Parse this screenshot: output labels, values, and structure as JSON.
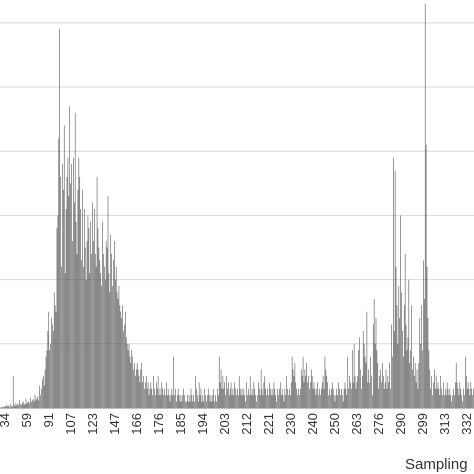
{
  "chart_data": {
    "type": "bar",
    "title": "",
    "xlabel": "Sampling",
    "ylabel": "",
    "x_ticks": [
      "34",
      "59",
      "91",
      "107",
      "123",
      "147",
      "166",
      "176",
      "185",
      "194",
      "203",
      "212",
      "221",
      "230",
      "240",
      "250",
      "263",
      "276",
      "290",
      "299",
      "313",
      "332"
    ],
    "ylim": [
      0,
      6.2
    ],
    "grid": true,
    "bar_color": "#555555",
    "gridline_color": "#d9d9d9",
    "samples": [
      0.01,
      0.01,
      0.02,
      0.01,
      0.02,
      0.03,
      0.02,
      0.05,
      0.03,
      0.04,
      0.02,
      0.06,
      0.03,
      0.02,
      0.5,
      0.05,
      0.03,
      0.08,
      0.04,
      0.06,
      0.05,
      0.12,
      0.06,
      0.05,
      0.08,
      0.1,
      0.05,
      0.06,
      0.14,
      0.07,
      0.09,
      0.1,
      0.08,
      0.16,
      0.1,
      0.12,
      0.14,
      0.1,
      0.2,
      0.12,
      0.15,
      0.18,
      0.12,
      0.35,
      0.2,
      0.3,
      0.45,
      0.5,
      0.35,
      0.6,
      0.8,
      0.9,
      1.2,
      1.5,
      0.9,
      1.0,
      1.4,
      1.3,
      1.2,
      1.8,
      1.6,
      1.5,
      2.8,
      3.0,
      4.2,
      5.9,
      3.6,
      2.2,
      3.8,
      3.4,
      4.4,
      2.1,
      3.1,
      3.6,
      3.9,
      3.3,
      4.7,
      3.5,
      3.8,
      2.6,
      3.9,
      3.2,
      4.6,
      2.9,
      2.4,
      3.4,
      3.9,
      3.6,
      3.1,
      2.3,
      3.4,
      2.2,
      3.1,
      2.5,
      2.0,
      2.6,
      3.0,
      2.8,
      2.1,
      2.9,
      2.4,
      3.2,
      2.6,
      3.1,
      2.4,
      2.2,
      3.6,
      2.8,
      2.5,
      2.3,
      2.1,
      1.9,
      2.9,
      2.4,
      2.2,
      2.0,
      2.6,
      2.5,
      3.3,
      2.1,
      1.8,
      2.7,
      2.4,
      1.9,
      2.3,
      2.6,
      2.0,
      2.2,
      1.8,
      1.7,
      1.9,
      1.6,
      1.5,
      1.4,
      1.6,
      1.2,
      1.3,
      1.5,
      1.1,
      1.0,
      0.9,
      1.0,
      0.8,
      0.7,
      0.9,
      0.8,
      0.6,
      0.7,
      0.5,
      0.6,
      0.7,
      0.6,
      0.5,
      0.4,
      0.6,
      0.7,
      0.4,
      0.5,
      0.3,
      0.4,
      0.5,
      0.3,
      0.4,
      0.2,
      0.3,
      0.4,
      0.3,
      0.2,
      0.5,
      0.3,
      0.2,
      0.4,
      0.3,
      0.5,
      0.2,
      0.3,
      0.2,
      0.4,
      0.3,
      0.2,
      0.3,
      0.2,
      0.4,
      0.2,
      0.3,
      0.2,
      0.1,
      0.2,
      0.3,
      0.2,
      0.8,
      0.2,
      0.3,
      0.1,
      0.2,
      0.3,
      0.2,
      0.1,
      0.2,
      0.1,
      0.2,
      0.3,
      0.2,
      0.1,
      0.1,
      0.2,
      0.1,
      0.2,
      0.1,
      0.3,
      0.2,
      0.1,
      0.2,
      0.1,
      0.5,
      0.3,
      0.2,
      0.1,
      0.4,
      0.2,
      0.3,
      0.1,
      0.2,
      0.1,
      0.3,
      0.2,
      0.1,
      0.2,
      0.3,
      0.2,
      0.1,
      0.2,
      0.1,
      0.2,
      0.3,
      0.1,
      0.2,
      0.1,
      0.3,
      0.2,
      0.8,
      0.4,
      0.6,
      0.3,
      0.5,
      0.3,
      0.4,
      0.2,
      0.5,
      0.3,
      0.4,
      0.2,
      0.3,
      0.4,
      0.2,
      0.3,
      0.2,
      0.4,
      0.3,
      0.2,
      0.3,
      0.2,
      0.5,
      0.3,
      0.2,
      0.3,
      0.2,
      0.3,
      0.2,
      0.1,
      0.4,
      0.2,
      0.3,
      0.2,
      0.5,
      0.2,
      0.3,
      0.2,
      0.4,
      0.3,
      0.2,
      0.1,
      0.2,
      0.4,
      0.3,
      0.2,
      0.6,
      0.3,
      0.2,
      0.4,
      0.5,
      0.3,
      0.2,
      0.3,
      0.2,
      0.4,
      0.3,
      0.2,
      0.3,
      0.2,
      0.4,
      0.3,
      0.2,
      0.1,
      0.3,
      0.2,
      0.3,
      0.4,
      0.2,
      0.3,
      0.2,
      0.1,
      0.3,
      0.2,
      0.5,
      0.3,
      0.2,
      0.3,
      0.2,
      0.4,
      0.8,
      0.6,
      0.5,
      0.7,
      0.4,
      0.3,
      0.2,
      0.3,
      0.2,
      0.3,
      0.6,
      0.5,
      0.8,
      0.4,
      0.6,
      0.5,
      0.7,
      0.4,
      0.5,
      0.3,
      0.4,
      0.6,
      0.5,
      0.3,
      0.4,
      0.3,
      0.2,
      0.3,
      0.4,
      0.2,
      0.3,
      0.2,
      0.3,
      0.4,
      0.5,
      0.3,
      0.8,
      0.6,
      0.5,
      0.4,
      0.2,
      0.3,
      0.2,
      0.3,
      0.4,
      0.3,
      0.2,
      0.1,
      0.2,
      0.3,
      0.2,
      0.4,
      0.3,
      0.2,
      0.3,
      0.2,
      0.1,
      0.3,
      0.4,
      0.3,
      0.2,
      0.8,
      0.3,
      0.5,
      0.4,
      0.3,
      0.9,
      0.4,
      1.0,
      0.5,
      0.3,
      0.4,
      0.5,
      0.9,
      1.1,
      0.6,
      0.3,
      0.5,
      1.2,
      1.0,
      0.8,
      0.7,
      1.5,
      0.4,
      0.6,
      0.4,
      0.8,
      0.5,
      0.2,
      1.3,
      1.7,
      1.0,
      1.4,
      0.9,
      0.7,
      0.3,
      0.5,
      0.6,
      0.4,
      0.7,
      0.5,
      0.3,
      0.4,
      0.6,
      0.3,
      0.5,
      0.4,
      0.7,
      0.3,
      1.3,
      0.8,
      3.9,
      1.2,
      3.7,
      2.2,
      1.6,
      1.0,
      1.9,
      1.4,
      3.0,
      1.8,
      1.2,
      0.8,
      1.6,
      2.4,
      1.3,
      0.9,
      1.1,
      2.0,
      0.7,
      0.9,
      1.6,
      0.6,
      0.8,
      0.5,
      0.7,
      0.4,
      0.6,
      0.3,
      0.7,
      1.4,
      1.0,
      1.6,
      0.9,
      2.3,
      1.7,
      6.3,
      4.1,
      2.2,
      1.4,
      0.9,
      0.6,
      0.3,
      0.5,
      0.2,
      0.4,
      0.6,
      0.3,
      0.5,
      0.3,
      0.4,
      0.3,
      0.2,
      0.5,
      0.3,
      0.2,
      0.4,
      0.2,
      0.3,
      0.2,
      0.4,
      0.3,
      0.2,
      0.3,
      0.2,
      0.1,
      0.2,
      0.3,
      0.2,
      0.4,
      0.7,
      0.4,
      0.3,
      0.2,
      0.4,
      0.3,
      0.2,
      0.1,
      0.3,
      0.2,
      0.8,
      0.5,
      0.3,
      0.4,
      0.3,
      0.2,
      0.4,
      0.3,
      0.2,
      0.3
    ]
  }
}
